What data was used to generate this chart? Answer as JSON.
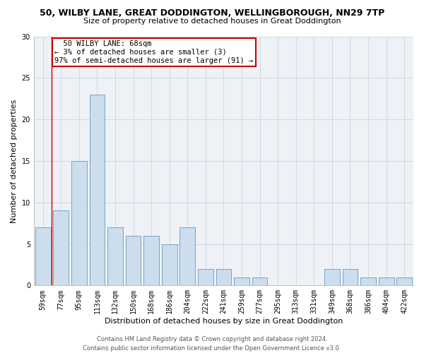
{
  "title1": "50, WILBY LANE, GREAT DODDINGTON, WELLINGBOROUGH, NN29 7TP",
  "title2": "Size of property relative to detached houses in Great Doddington",
  "xlabel": "Distribution of detached houses by size in Great Doddington",
  "ylabel": "Number of detached properties",
  "categories": [
    "59sqm",
    "77sqm",
    "95sqm",
    "113sqm",
    "132sqm",
    "150sqm",
    "168sqm",
    "186sqm",
    "204sqm",
    "222sqm",
    "241sqm",
    "259sqm",
    "277sqm",
    "295sqm",
    "313sqm",
    "331sqm",
    "349sqm",
    "368sqm",
    "386sqm",
    "404sqm",
    "422sqm"
  ],
  "values": [
    7,
    9,
    15,
    23,
    7,
    6,
    6,
    5,
    7,
    2,
    2,
    1,
    1,
    0,
    0,
    0,
    2,
    2,
    1,
    1,
    1
  ],
  "bar_color": "#ccdded",
  "bar_edge_color": "#6699bb",
  "annotation_text": "  50 WILBY LANE: 68sqm\n← 3% of detached houses are smaller (3)\n97% of semi-detached houses are larger (91) →",
  "annotation_box_color": "#ffffff",
  "annotation_box_edge": "#cc0000",
  "annotation_line_color": "#cc0000",
  "ylim": [
    0,
    30
  ],
  "yticks": [
    0,
    5,
    10,
    15,
    20,
    25,
    30
  ],
  "grid_color": "#d0d8e0",
  "background_color": "#eef2f7",
  "footer1": "Contains HM Land Registry data © Crown copyright and database right 2024.",
  "footer2": "Contains public sector information licensed under the Open Government Licence v3.0.",
  "title1_fontsize": 9,
  "title2_fontsize": 8,
  "xlabel_fontsize": 8,
  "ylabel_fontsize": 8,
  "tick_fontsize": 7,
  "footer_fontsize": 6,
  "annotation_fontsize": 7.5
}
